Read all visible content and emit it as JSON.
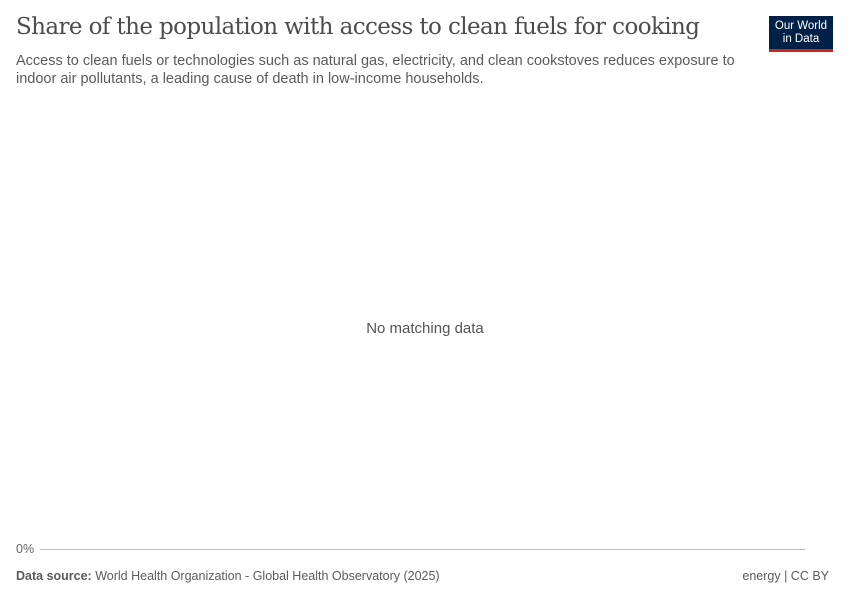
{
  "header": {
    "title": "Share of the population with access to clean fuels for cooking",
    "subtitle": "Access to clean fuels or technologies such as natural gas, electricity, and clean cookstoves reduces exposure to indoor air pollutants, a leading cause of death in low-income households.",
    "logo_text": "Our World in Data"
  },
  "chart_data": {
    "type": "line",
    "title": "Share of the population with access to clean fuels for cooking",
    "series": [],
    "y_ticks": [
      "0%"
    ],
    "empty_message": "No matching data",
    "colors": {
      "logo_bg": "#002147",
      "logo_accent": "#ce261e"
    }
  },
  "footer": {
    "source_label": "Data source:",
    "source_text": "World Health Organization - Global Health Observatory (2025)",
    "license": "energy | CC BY"
  }
}
